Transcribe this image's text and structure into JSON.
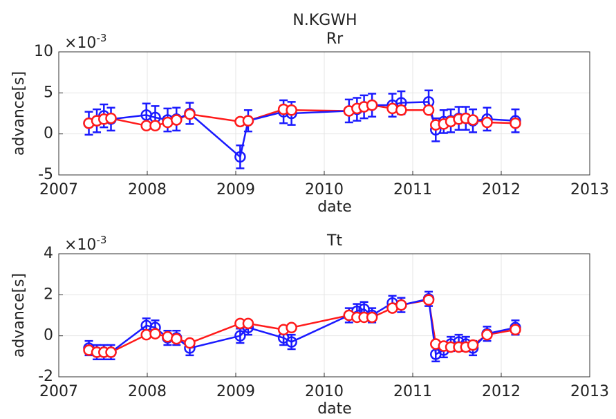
{
  "figure_title": "N.KGWH",
  "chart_data": [
    {
      "type": "errorbar-line",
      "title": "Rr",
      "x_label": "date",
      "y_label": "advance[s]",
      "y_multiplier": {
        "base": "×10",
        "power": "-3"
      },
      "x": [
        2007.34,
        2007.43,
        2007.51,
        2007.59,
        2007.99,
        2008.09,
        2008.23,
        2008.33,
        2008.48,
        2009.05,
        2009.14,
        2009.54,
        2009.63,
        2010.28,
        2010.37,
        2010.45,
        2010.54,
        2010.77,
        2010.87,
        2011.18,
        2011.26,
        2011.35,
        2011.43,
        2011.52,
        2011.6,
        2011.68,
        2011.84,
        2012.16
      ],
      "series": [
        {
          "color": "#1a1aff",
          "values": [
            1.3,
            1.6,
            2.2,
            1.8,
            2.3,
            2.0,
            1.7,
            1.8,
            2.5,
            -2.8,
            1.6,
            2.7,
            2.5,
            2.8,
            3.0,
            3.3,
            3.5,
            3.5,
            3.8,
            3.9,
            0.5,
            1.5,
            1.6,
            1.9,
            1.9,
            1.6,
            1.8,
            1.6
          ],
          "errors": [
            1.4,
            1.4,
            1.4,
            1.4,
            1.4,
            1.4,
            1.4,
            1.4,
            1.3,
            1.4,
            1.3,
            1.4,
            1.4,
            1.4,
            1.4,
            1.4,
            1.4,
            1.4,
            1.4,
            1.4,
            1.4,
            1.4,
            1.4,
            1.4,
            1.4,
            1.4,
            1.4,
            1.4
          ]
        },
        {
          "color": "#ff1a1a",
          "values": [
            1.3,
            1.6,
            1.8,
            1.9,
            1.0,
            1.0,
            1.4,
            1.7,
            2.4,
            1.5,
            1.6,
            3.0,
            2.9,
            2.8,
            3.1,
            3.3,
            3.5,
            3.1,
            2.9,
            2.9,
            1.1,
            1.2,
            1.5,
            1.8,
            1.9,
            1.7,
            1.4,
            1.3
          ]
        }
      ],
      "xlim": [
        2007,
        2013
      ],
      "xticks": [
        2007,
        2008,
        2009,
        2010,
        2011,
        2012,
        2013
      ],
      "ylim": [
        -5,
        10
      ],
      "yticks": [
        -5,
        0,
        5,
        10
      ],
      "grid": true
    },
    {
      "type": "errorbar-line",
      "title": "Tt",
      "x_label": "date",
      "y_label": "advance[s]",
      "y_multiplier": {
        "base": "×10",
        "power": "-3"
      },
      "x": [
        2007.34,
        2007.43,
        2007.51,
        2007.59,
        2007.99,
        2008.09,
        2008.23,
        2008.33,
        2008.48,
        2009.05,
        2009.14,
        2009.54,
        2009.63,
        2010.28,
        2010.37,
        2010.45,
        2010.54,
        2010.77,
        2010.87,
        2011.18,
        2011.26,
        2011.35,
        2011.43,
        2011.52,
        2011.6,
        2011.68,
        2011.84,
        2012.16
      ],
      "series": [
        {
          "color": "#1a1aff",
          "values": [
            -0.6,
            -0.8,
            -0.8,
            -0.8,
            0.5,
            0.4,
            -0.1,
            -0.1,
            -0.6,
            0.0,
            0.4,
            -0.1,
            -0.3,
            1.0,
            1.2,
            1.3,
            1.0,
            1.6,
            1.5,
            1.8,
            -0.9,
            -0.7,
            -0.4,
            -0.3,
            -0.4,
            -0.6,
            0.1,
            0.4
          ],
          "errors": [
            0.35,
            0.35,
            0.35,
            0.35,
            0.35,
            0.35,
            0.35,
            0.35,
            0.35,
            0.35,
            0.35,
            0.35,
            0.35,
            0.35,
            0.35,
            0.35,
            0.35,
            0.35,
            0.35,
            0.35,
            0.35,
            0.35,
            0.35,
            0.35,
            0.35,
            0.35,
            0.35,
            0.35
          ]
        },
        {
          "color": "#ff1a1a",
          "values": [
            -0.7,
            -0.8,
            -0.8,
            -0.8,
            0.05,
            0.1,
            -0.05,
            -0.15,
            -0.35,
            0.6,
            0.6,
            0.3,
            0.4,
            1.0,
            0.9,
            0.9,
            0.9,
            1.35,
            1.5,
            1.75,
            -0.4,
            -0.5,
            -0.55,
            -0.55,
            -0.55,
            -0.45,
            0.05,
            0.3
          ]
        }
      ],
      "xlim": [
        2007,
        2013
      ],
      "xticks": [
        2007,
        2008,
        2009,
        2010,
        2011,
        2012,
        2013
      ],
      "ylim": [
        -2,
        4
      ],
      "yticks": [
        -2,
        0,
        2,
        4
      ],
      "grid": true
    }
  ]
}
